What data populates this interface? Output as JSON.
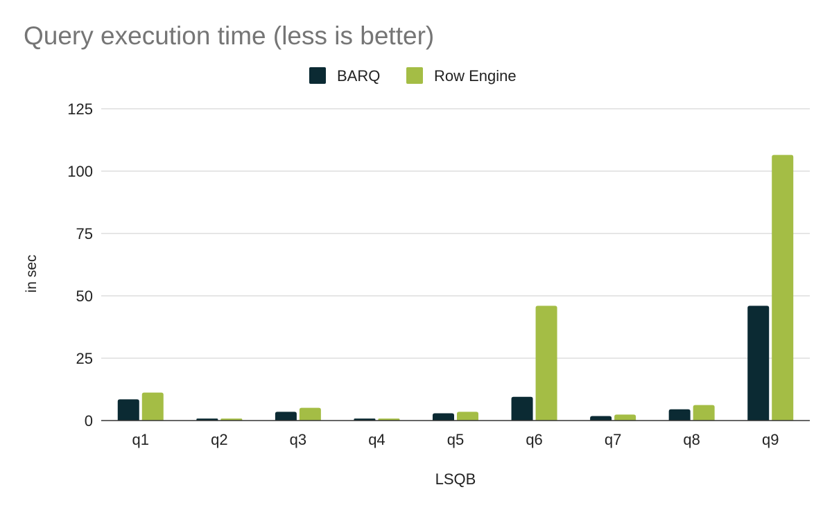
{
  "chart_data": {
    "type": "bar",
    "title": "Query execution time (less is better)",
    "xlabel": "LSQB",
    "ylabel": "in sec",
    "ylim": [
      0,
      125
    ],
    "yticks": [
      0,
      25,
      50,
      75,
      100,
      125
    ],
    "grid": true,
    "legend_position": "top-center",
    "categories": [
      "q1",
      "q2",
      "q3",
      "q4",
      "q5",
      "q6",
      "q7",
      "q8",
      "q9"
    ],
    "series": [
      {
        "name": "BARQ",
        "color": "#0b2a33",
        "values": [
          8.5,
          0.8,
          3.5,
          0.8,
          2.9,
          9.5,
          1.8,
          4.5,
          46
        ]
      },
      {
        "name": "Row Engine",
        "color": "#a4bd45",
        "values": [
          11.2,
          0.8,
          5.1,
          0.8,
          3.5,
          46,
          2.4,
          6.2,
          106.5
        ]
      }
    ],
    "colors": {
      "title": "#757575",
      "grid": "#cccccc",
      "axis": "#333333",
      "text": "#222222"
    }
  }
}
